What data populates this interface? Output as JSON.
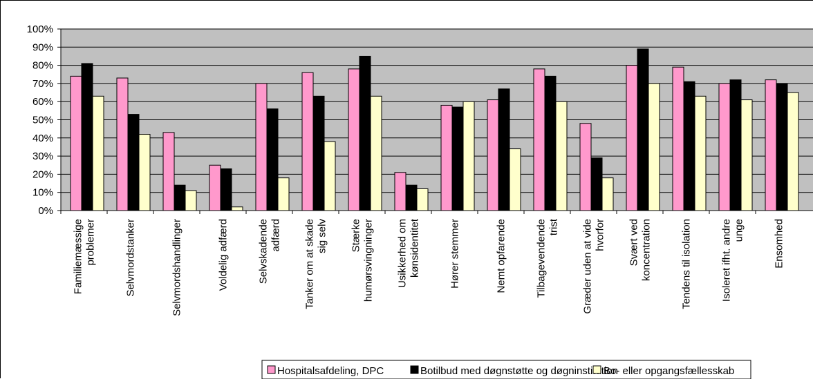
{
  "chart_data": {
    "type": "bar",
    "categories": [
      [
        "Familiemæssige",
        "problemer"
      ],
      [
        "Selvmordstanker"
      ],
      [
        "Selvmordshandlinger"
      ],
      [
        "Voldelig adfærd"
      ],
      [
        "Selvskadende",
        "adfærd"
      ],
      [
        "Tanker om at skade",
        "sig selv"
      ],
      [
        "Stærke",
        "humørsvingninger"
      ],
      [
        "Usikkerhed om",
        "kønsidentitet"
      ],
      [
        "Hører stemmer"
      ],
      [
        "Nemt opfarende"
      ],
      [
        "Tilbagevendende",
        "trist"
      ],
      [
        "Græder uden at vide",
        "hvorfor"
      ],
      [
        "Svært ved",
        "koncentration"
      ],
      [
        "Tendens til isolation"
      ],
      [
        "Isoleret ifht. andre",
        "unge"
      ],
      [
        "Ensomhed"
      ]
    ],
    "series": [
      {
        "name": "Hospitalsafdeling, DPC",
        "color": "#ff99cc",
        "values": [
          74,
          73,
          43,
          25,
          70,
          76,
          78,
          21,
          58,
          61,
          78,
          48,
          80,
          79,
          70,
          72
        ]
      },
      {
        "name": "Botilbud med døgnstøtte og døgninstitution",
        "color": "#000000",
        "values": [
          81,
          53,
          14,
          23,
          56,
          63,
          85,
          14,
          57,
          67,
          74,
          29,
          89,
          71,
          72,
          70
        ]
      },
      {
        "name": "Bo- eller opgangsfællesskab",
        "color": "#ffffcc",
        "values": [
          63,
          42,
          11,
          2,
          18,
          38,
          63,
          12,
          60,
          34,
          60,
          18,
          70,
          63,
          61,
          65
        ]
      }
    ],
    "ylim": [
      0,
      100
    ],
    "yticks": [
      "0%",
      "10%",
      "20%",
      "30%",
      "40%",
      "50%",
      "60%",
      "70%",
      "80%",
      "90%",
      "100%"
    ],
    "grid": true,
    "plot_background": "#c0c0c0",
    "legend_position": "bottom"
  }
}
